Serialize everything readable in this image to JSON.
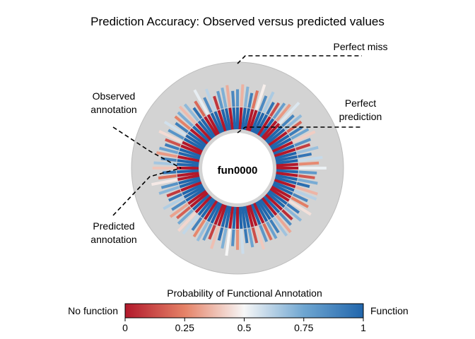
{
  "chart_data": {
    "type": "radial-bar",
    "title": "Prediction Accuracy: Observed versus predicted values",
    "center_label": "fun0000",
    "annotations": {
      "perfect_miss": "Perfect miss",
      "perfect_prediction_line1": "Perfect",
      "perfect_prediction_line2": "prediction",
      "observed_line1": "Observed",
      "observed_line2": "annotation",
      "predicted_line1": "Predicted",
      "predicted_line2": "annotation"
    },
    "colorbar": {
      "title": "Probability of Functional Annotation",
      "left_label": "No function",
      "right_label": "Function",
      "ticks": [
        "0",
        "0.25",
        "0.5",
        "0.75",
        "1"
      ],
      "colors": [
        "#b2182b",
        "#e58267",
        "#f7f7f7",
        "#6fa6d1",
        "#2166ac"
      ]
    },
    "series": [
      {
        "name": "Observed annotation",
        "values": [
          1,
          0,
          1,
          1,
          0,
          0,
          1,
          1,
          1,
          0,
          1,
          0,
          0,
          1,
          1,
          0,
          1,
          1,
          0,
          1,
          0,
          1,
          1,
          1,
          0,
          0,
          1,
          0,
          1,
          1,
          0,
          1,
          1,
          0,
          0,
          1,
          1,
          0,
          1,
          0,
          1,
          1,
          1,
          0,
          1,
          0,
          0,
          1,
          1,
          1,
          0,
          1,
          0,
          1,
          1,
          0,
          0,
          1,
          1,
          0,
          1,
          1,
          0,
          1,
          0,
          0,
          1,
          1,
          1,
          0,
          1,
          1,
          0,
          0,
          1,
          0,
          1,
          1,
          0,
          1,
          1,
          0,
          0,
          1,
          1,
          1,
          0,
          1,
          0,
          1,
          1,
          0,
          0,
          1,
          1,
          0,
          1,
          1,
          0,
          1
        ]
      },
      {
        "name": "Predicted annotation",
        "values": [
          0.82,
          0.35,
          0.71,
          0.9,
          0.22,
          0.48,
          0.86,
          0.64,
          0.95,
          0.12,
          0.78,
          0.3,
          0.55,
          0.88,
          0.69,
          0.18,
          0.91,
          0.75,
          0.41,
          0.83,
          0.09,
          0.67,
          0.94,
          0.59,
          0.27,
          0.52,
          0.8,
          0.15,
          0.73,
          0.97,
          0.36,
          0.62,
          0.87,
          0.24,
          0.45,
          0.92,
          0.7,
          0.05,
          0.85,
          0.33,
          0.66,
          0.9,
          0.77,
          0.2,
          0.81,
          0.4,
          0.13,
          0.76,
          0.93,
          0.58,
          0.28,
          0.84,
          0.5,
          0.72,
          0.96,
          0.38,
          0.1,
          0.79,
          0.68,
          0.26,
          0.89,
          0.6,
          0.43,
          0.74,
          0.17,
          0.32,
          0.86,
          0.63,
          0.92,
          0.08,
          0.7,
          0.83,
          0.47,
          0.21,
          0.95,
          0.39,
          0.65,
          0.88,
          0.3,
          0.76,
          0.91,
          0.14,
          0.44,
          0.82,
          0.57,
          0.9,
          0.25,
          0.73,
          0.37,
          0.69,
          0.97,
          0.19,
          0.53,
          0.85,
          0.61,
          0.07,
          0.8,
          0.72,
          0.34,
          0.87
        ]
      }
    ]
  }
}
